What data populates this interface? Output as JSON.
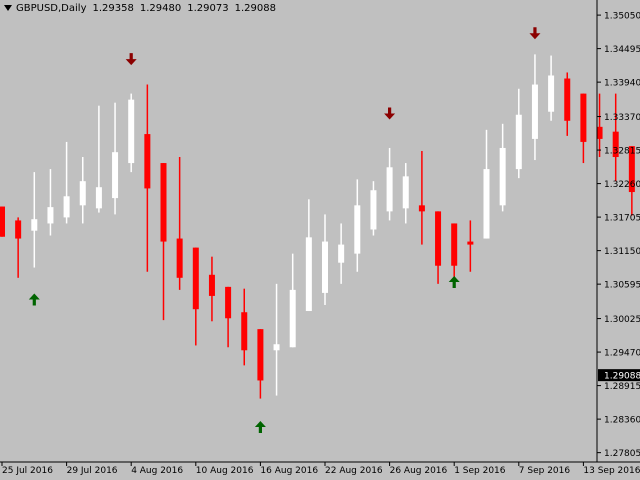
{
  "header": {
    "symbol_tf": "GBPUSD,Daily",
    "open": "1.29358",
    "high": "1.29480",
    "low": "1.29073",
    "close": "1.29088"
  },
  "price_axis": {
    "labels": [
      "1.35050",
      "1.34495",
      "1.33940",
      "1.33370",
      "1.32815",
      "1.32260",
      "1.31705",
      "1.31150",
      "1.30595",
      "1.30025",
      "1.29470",
      "1.28915",
      "1.28360",
      "1.27805"
    ],
    "current_price": "1.29088"
  },
  "time_axis": {
    "labels": [
      "25 Jul 2016",
      "29 Jul 2016",
      "4 Aug 2016",
      "10 Aug 2016",
      "16 Aug 2016",
      "22 Aug 2016",
      "26 Aug 2016",
      "1 Sep 2016",
      "7 Sep 2016",
      "13 Sep 2016"
    ]
  },
  "colors": {
    "background": "#c0c0c0",
    "bull_candle": "#ffffff",
    "bear_candle": "#ff0000",
    "up_arrow": "#006400",
    "down_arrow": "#8b0000",
    "axis_text": "#000000"
  },
  "chart_data": {
    "type": "candlestick",
    "ylim": [
      1.2765,
      1.353
    ],
    "candles": [
      {
        "o": 1.3188,
        "h": 1.3188,
        "l": 1.3138,
        "c": 1.3138
      },
      {
        "o": 1.3165,
        "h": 1.317,
        "l": 1.307,
        "c": 1.3135
      },
      {
        "o": 1.3148,
        "h": 1.3245,
        "l": 1.3087,
        "c": 1.3167
      },
      {
        "o": 1.316,
        "h": 1.325,
        "l": 1.314,
        "c": 1.3187
      },
      {
        "o": 1.317,
        "h": 1.3295,
        "l": 1.316,
        "c": 1.3205
      },
      {
        "o": 1.319,
        "h": 1.327,
        "l": 1.316,
        "c": 1.323
      },
      {
        "o": 1.3185,
        "h": 1.3355,
        "l": 1.3178,
        "c": 1.322
      },
      {
        "o": 1.3202,
        "h": 1.336,
        "l": 1.3175,
        "c": 1.3278
      },
      {
        "o": 1.326,
        "h": 1.3375,
        "l": 1.3245,
        "c": 1.3365
      },
      {
        "o": 1.3308,
        "h": 1.339,
        "l": 1.308,
        "c": 1.3218
      },
      {
        "o": 1.326,
        "h": 1.326,
        "l": 1.3,
        "c": 1.313
      },
      {
        "o": 1.3135,
        "h": 1.327,
        "l": 1.305,
        "c": 1.307
      },
      {
        "o": 1.312,
        "h": 1.312,
        "l": 1.2958,
        "c": 1.3018
      },
      {
        "o": 1.3075,
        "h": 1.3105,
        "l": 1.2998,
        "c": 1.304
      },
      {
        "o": 1.3055,
        "h": 1.3055,
        "l": 1.2955,
        "c": 1.3003
      },
      {
        "o": 1.3013,
        "h": 1.3052,
        "l": 1.2925,
        "c": 1.295
      },
      {
        "o": 1.2985,
        "h": 1.2985,
        "l": 1.287,
        "c": 1.29
      },
      {
        "o": 1.295,
        "h": 1.306,
        "l": 1.2875,
        "c": 1.296
      },
      {
        "o": 1.2955,
        "h": 1.311,
        "l": 1.2955,
        "c": 1.305
      },
      {
        "o": 1.3015,
        "h": 1.32,
        "l": 1.3015,
        "c": 1.3137
      },
      {
        "o": 1.3045,
        "h": 1.3175,
        "l": 1.3025,
        "c": 1.313
      },
      {
        "o": 1.3095,
        "h": 1.316,
        "l": 1.306,
        "c": 1.3125
      },
      {
        "o": 1.311,
        "h": 1.3233,
        "l": 1.308,
        "c": 1.319
      },
      {
        "o": 1.315,
        "h": 1.323,
        "l": 1.314,
        "c": 1.3215
      },
      {
        "o": 1.318,
        "h": 1.3285,
        "l": 1.3165,
        "c": 1.3253
      },
      {
        "o": 1.3185,
        "h": 1.326,
        "l": 1.316,
        "c": 1.3238
      },
      {
        "o": 1.319,
        "h": 1.328,
        "l": 1.3125,
        "c": 1.318
      },
      {
        "o": 1.318,
        "h": 1.318,
        "l": 1.306,
        "c": 1.309
      },
      {
        "o": 1.316,
        "h": 1.316,
        "l": 1.306,
        "c": 1.309
      },
      {
        "o": 1.313,
        "h": 1.3165,
        "l": 1.308,
        "c": 1.3125
      },
      {
        "o": 1.3135,
        "h": 1.3315,
        "l": 1.3135,
        "c": 1.325
      },
      {
        "o": 1.319,
        "h": 1.3325,
        "l": 1.318,
        "c": 1.3285
      },
      {
        "o": 1.325,
        "h": 1.3383,
        "l": 1.3235,
        "c": 1.334
      },
      {
        "o": 1.33,
        "h": 1.344,
        "l": 1.3265,
        "c": 1.339
      },
      {
        "o": 1.3345,
        "h": 1.3438,
        "l": 1.333,
        "c": 1.3405
      },
      {
        "o": 1.34,
        "h": 1.341,
        "l": 1.3305,
        "c": 1.333
      },
      {
        "o": 1.3375,
        "h": 1.3375,
        "l": 1.326,
        "c": 1.3295
      },
      {
        "o": 1.332,
        "h": 1.3375,
        "l": 1.327,
        "c": 1.33
      },
      {
        "o": 1.3312,
        "h": 1.3375,
        "l": 1.323,
        "c": 1.327
      },
      {
        "o": 1.3288,
        "h": 1.3288,
        "l": 1.3173,
        "c": 1.3212
      }
    ],
    "signals": [
      {
        "i": 2,
        "dir": "up",
        "y": 1.3034
      },
      {
        "i": 8,
        "dir": "down",
        "y": 1.3432
      },
      {
        "i": 16,
        "dir": "up",
        "y": 1.2823
      },
      {
        "i": 24,
        "dir": "down",
        "y": 1.3342
      },
      {
        "i": 28,
        "dir": "up",
        "y": 1.3063
      },
      {
        "i": 33,
        "dir": "down",
        "y": 1.3475
      }
    ]
  }
}
